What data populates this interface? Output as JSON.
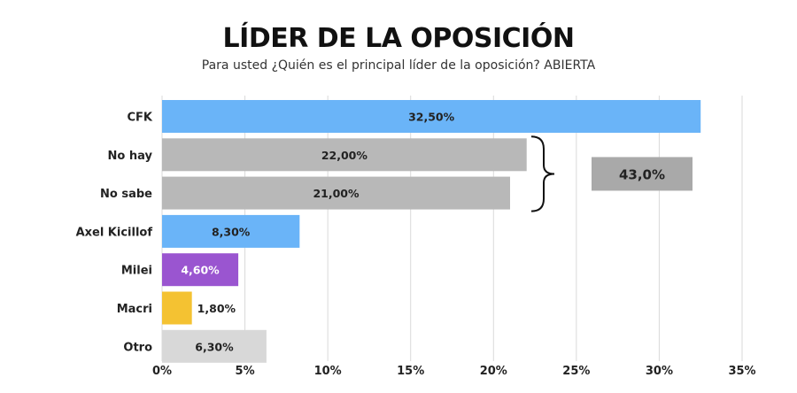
{
  "chart_data": {
    "type": "bar",
    "orientation": "horizontal",
    "title": "LÍDER DE LA OPOSICIÓN",
    "subtitle": "Para usted ¿Quién es el principal líder de la oposición? ABIERTA",
    "categories": [
      "CFK",
      "No hay",
      "No sabe",
      "Axel Kicillof",
      "Milei",
      "Macri",
      "Otro"
    ],
    "values": [
      32.5,
      22.0,
      21.0,
      8.3,
      4.6,
      1.8,
      6.3
    ],
    "value_labels": [
      "32,50%",
      "22,00%",
      "21,00%",
      "8,30%",
      "4,60%",
      "1,80%",
      "6,30%"
    ],
    "bar_colors": [
      "#6ab4f8",
      "#b8b8b8",
      "#b8b8b8",
      "#6ab4f8",
      "#9a55d0",
      "#f4c232",
      "#d8d8d8"
    ],
    "xlim": [
      0,
      35
    ],
    "xticks": [
      0,
      5,
      10,
      15,
      20,
      25,
      30,
      35
    ],
    "xtick_labels": [
      "0%",
      "5%",
      "10%",
      "15%",
      "20%",
      "25%",
      "30%",
      "35%"
    ],
    "grid": true,
    "annotation": {
      "label": "43,0%",
      "brace_categories": [
        "No hay",
        "No sabe"
      ],
      "color": "#a9a9a9"
    }
  }
}
